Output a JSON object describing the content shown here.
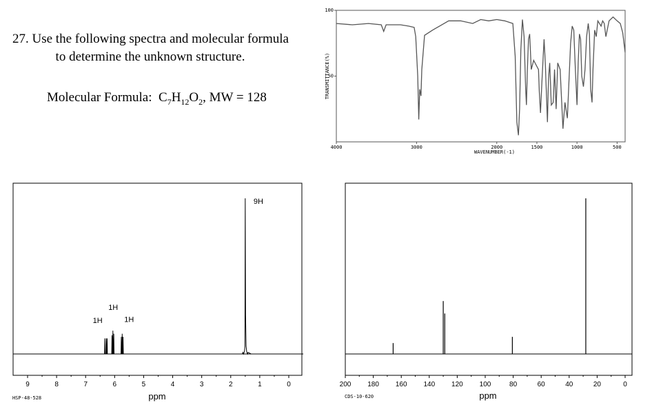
{
  "question": {
    "line1": "27. Use the following spectra and molecular formula",
    "line2": "to determine the unknown structure.",
    "mf_label": "Molecular Formula:",
    "mf_C": "C",
    "mf_C_n": "7",
    "mf_H": "H",
    "mf_H_n": "12",
    "mf_O": "O",
    "mf_O_n": "2",
    "mw": ", MW = 128"
  },
  "chart_data": [
    {
      "type": "line",
      "xlim": [
        4000,
        400
      ],
      "ylim": [
        0,
        100
      ],
      "x_ticks": [
        {
          "v": 4000,
          "label": "4000"
        },
        {
          "v": 3000,
          "label": "3000"
        },
        {
          "v": 2000,
          "label": "2000"
        },
        {
          "v": 1500,
          "label": "1500"
        },
        {
          "v": 1000,
          "label": "1000"
        },
        {
          "v": 500,
          "label": "500"
        }
      ],
      "y_ticks": [
        {
          "v": 100,
          "label": "100"
        },
        {
          "v": 50,
          "label": "50"
        }
      ],
      "xlabel": "WAVENUMBER(-1)",
      "ylabel": "TRANSMITTANCE(%)",
      "series": [
        {
          "x": [
            4000,
            3800,
            3600,
            3440,
            3410,
            3380,
            3200,
            3100,
            3030,
            3010,
            2985,
            2972,
            2960,
            2945,
            2935,
            2900,
            2800,
            2600,
            2450,
            2300,
            2200,
            2100,
            2000,
            1900,
            1800,
            1770,
            1750,
            1730,
            1715,
            1700,
            1680,
            1660,
            1640,
            1630,
            1618,
            1605,
            1590,
            1570,
            1540,
            1480,
            1470,
            1455,
            1435,
            1410,
            1395,
            1380,
            1368,
            1355,
            1340,
            1320,
            1296,
            1280,
            1260,
            1240,
            1210,
            1175,
            1150,
            1120,
            1080,
            1060,
            1040,
            1020,
            1000,
            985,
            970,
            955,
            940,
            920,
            900,
            880,
            860,
            845,
            830,
            812,
            800,
            780,
            760,
            740,
            700,
            680,
            660,
            640,
            600,
            550,
            500,
            460,
            430,
            400
          ],
          "y": [
            90,
            89,
            90,
            89,
            84,
            89,
            89,
            88,
            87,
            80,
            50,
            17,
            40,
            35,
            55,
            81,
            85,
            92,
            92,
            90,
            93,
            92,
            93,
            92,
            90,
            65,
            15,
            5,
            25,
            70,
            93,
            80,
            40,
            28,
            55,
            78,
            82,
            55,
            62,
            55,
            38,
            22,
            48,
            78,
            60,
            35,
            15,
            48,
            60,
            28,
            30,
            55,
            25,
            60,
            55,
            10,
            30,
            18,
            75,
            88,
            85,
            55,
            28,
            60,
            82,
            78,
            50,
            42,
            55,
            80,
            90,
            82,
            40,
            30,
            55,
            85,
            80,
            92,
            88,
            92,
            90,
            80,
            92,
            95,
            92,
            90,
            83,
            68
          ]
        }
      ]
    },
    {
      "type": "line",
      "xlim": [
        9.5,
        -0.5
      ],
      "xlabel": "ppm",
      "x_ticks": [
        9,
        8,
        7,
        6,
        5,
        4,
        3,
        2,
        1,
        0
      ],
      "series": [
        {
          "x": [
            9.5,
            6.35,
            6.34,
            6.33,
            6.3,
            6.29,
            6.28,
            6.27,
            6.26,
            6.25,
            6.1,
            6.09,
            6.08,
            6.07,
            6.06,
            6.05,
            6.04,
            6.03,
            6.02,
            5.78,
            5.77,
            5.76,
            5.75,
            5.74,
            5.73,
            5.72,
            5.71,
            5.7,
            1.7,
            1.6,
            1.58,
            1.56,
            1.53,
            1.51,
            1.5,
            1.49,
            1.47,
            1.45,
            1.42,
            1.4,
            1.3,
            1.2,
            -0.5
          ],
          "y": [
            0,
            0,
            10,
            0,
            0,
            10,
            0,
            0,
            10,
            0,
            0,
            12,
            0,
            0,
            15,
            0,
            0,
            13,
            0,
            0,
            11,
            0,
            0,
            13,
            0,
            0,
            11,
            0,
            0,
            0,
            1,
            0,
            1.5,
            5,
            100,
            25,
            5,
            1.5,
            0,
            1,
            0,
            0,
            0
          ]
        }
      ],
      "peaks": [
        {
          "x": 6.3,
          "label": "1H"
        },
        {
          "x": 6.05,
          "label": "1H"
        },
        {
          "x": 5.74,
          "label": "1H"
        },
        {
          "x": 1.5,
          "label": "9H"
        }
      ],
      "code": "HSP-48-528"
    },
    {
      "type": "bar",
      "xlim": [
        200,
        0
      ],
      "xlabel": "ppm",
      "x_ticks": [
        200,
        180,
        160,
        140,
        120,
        100,
        80,
        60,
        40,
        20,
        0
      ],
      "series": [
        {
          "x": [
            165.8,
            130.0,
            128.9,
            80.6,
            28.1
          ],
          "values": [
            7,
            34,
            26,
            11,
            100
          ]
        }
      ],
      "code": "CDS-10-620"
    }
  ]
}
